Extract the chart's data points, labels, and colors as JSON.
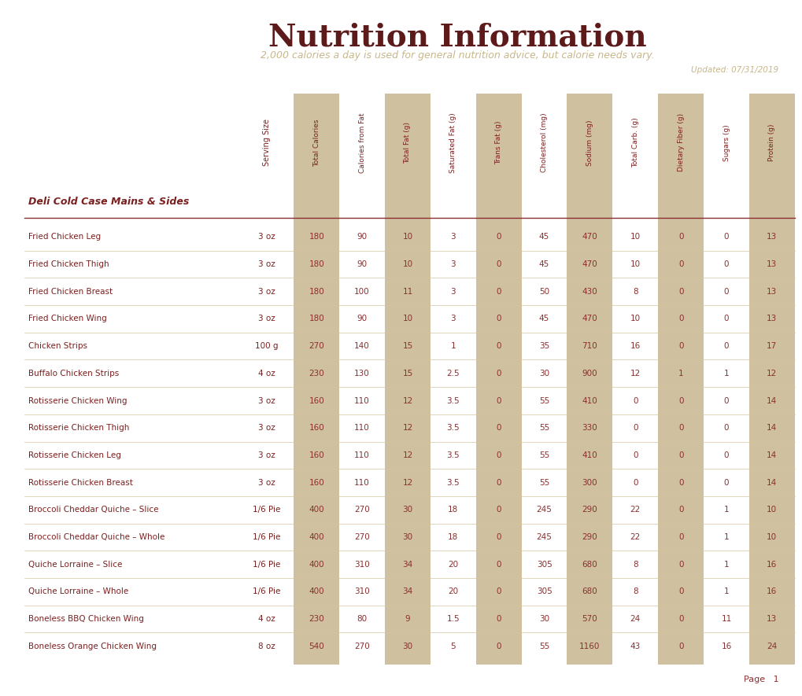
{
  "title": "Nutrition Information",
  "subtitle": "2,000 calories a day is used for general nutrition advice, but calorie needs vary.",
  "updated": "Updated: 07/31/2019",
  "section_label": "Deli Cold Case Mains & Sides",
  "columns": [
    "Serving Size",
    "Total Calories",
    "Calories from Fat",
    "Total Fat (g)",
    "Saturated Fat (g)",
    "Trans Fat (g)",
    "Cholesterol (mg)",
    "Sodium (mg)",
    "Total Carb. (g)",
    "Dietary Fiber (g)",
    "Sugars (g)",
    "Protein (g)"
  ],
  "rows": [
    [
      "Fried Chicken Leg",
      "3 oz",
      180,
      90,
      10,
      3,
      0,
      45,
      470,
      10,
      0,
      0,
      13
    ],
    [
      "Fried Chicken Thigh",
      "3 oz",
      180,
      90,
      10,
      3,
      0,
      45,
      470,
      10,
      0,
      0,
      13
    ],
    [
      "Fried Chicken Breast",
      "3 oz",
      180,
      100,
      11,
      3,
      0,
      50,
      430,
      8,
      0,
      0,
      13
    ],
    [
      "Fried Chicken Wing",
      "3 oz",
      180,
      90,
      10,
      3,
      0,
      45,
      470,
      10,
      0,
      0,
      13
    ],
    [
      "Chicken Strips",
      "100 g",
      270,
      140,
      15,
      1,
      0,
      35,
      710,
      16,
      0,
      0,
      17
    ],
    [
      "Buffalo Chicken Strips",
      "4 oz",
      230,
      130,
      15,
      2.5,
      0,
      30,
      900,
      12,
      1,
      1,
      12
    ],
    [
      "Rotisserie Chicken Wing",
      "3 oz",
      160,
      110,
      12,
      3.5,
      0,
      55,
      410,
      0,
      0,
      0,
      14
    ],
    [
      "Rotisserie Chicken Thigh",
      "3 oz",
      160,
      110,
      12,
      3.5,
      0,
      55,
      330,
      0,
      0,
      0,
      14
    ],
    [
      "Rotisserie Chicken Leg",
      "3 oz",
      160,
      110,
      12,
      3.5,
      0,
      55,
      410,
      0,
      0,
      0,
      14
    ],
    [
      "Rotisserie Chicken Breast",
      "3 oz",
      160,
      110,
      12,
      3.5,
      0,
      55,
      300,
      0,
      0,
      0,
      14
    ],
    [
      "Broccoli Cheddar Quiche – Slice",
      "1/6 Pie",
      400,
      270,
      30,
      18,
      0,
      245,
      290,
      22,
      0,
      1,
      10
    ],
    [
      "Broccoli Cheddar Quiche – Whole",
      "1/6 Pie",
      400,
      270,
      30,
      18,
      0,
      245,
      290,
      22,
      0,
      1,
      10
    ],
    [
      "Quiche Lorraine – Slice",
      "1/6 Pie",
      400,
      310,
      34,
      20,
      0,
      305,
      680,
      8,
      0,
      1,
      16
    ],
    [
      "Quiche Lorraine – Whole",
      "1/6 Pie",
      400,
      310,
      34,
      20,
      0,
      305,
      680,
      8,
      0,
      1,
      16
    ],
    [
      "Boneless BBQ Chicken Wing",
      "4 oz",
      230,
      80,
      9,
      1.5,
      0,
      30,
      570,
      24,
      0,
      11,
      13
    ],
    [
      "Boneless Orange Chicken Wing",
      "8 oz",
      540,
      270,
      30,
      5,
      0,
      55,
      1160,
      43,
      0,
      16,
      24
    ]
  ],
  "title_color": "#5c1a1a",
  "subtitle_color": "#c8b78a",
  "updated_color": "#c8b78a",
  "section_color": "#7b2020",
  "row_text_color": "#7b2020",
  "data_color": "#8b3030",
  "shaded_col_color": "#cfc09f",
  "divider_color": "#8b3030",
  "row_divider_color": "#d4c5a0",
  "bg_color": "#ffffff",
  "page_text": "Page   1",
  "page_color": "#8b3030"
}
